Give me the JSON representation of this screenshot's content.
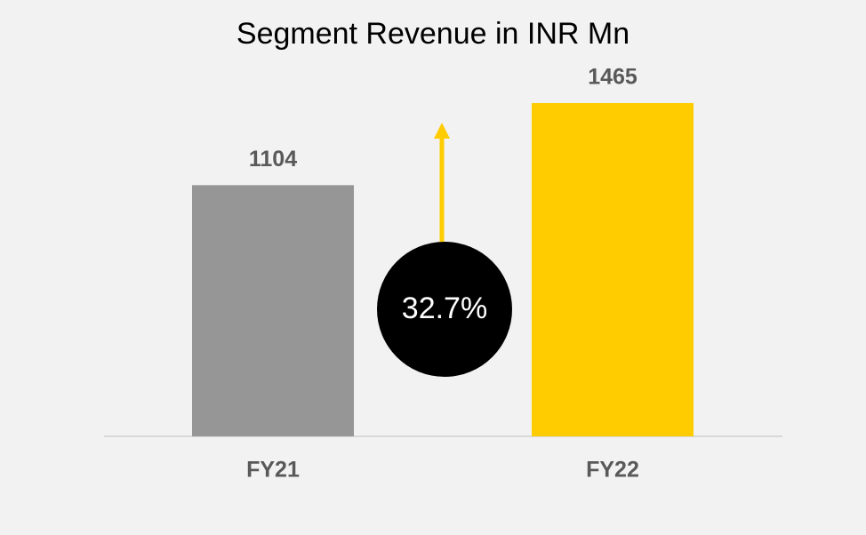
{
  "chart_data": {
    "type": "bar",
    "title": "Segment Revenue in INR Mn",
    "categories": [
      "FY21",
      "FY22"
    ],
    "values": [
      1104,
      1465
    ],
    "colors": [
      "#969696",
      "#ffcc00"
    ],
    "ylim": [
      0,
      1600
    ],
    "annotation": "32.7%",
    "annotation_color": "#ffcc00"
  }
}
